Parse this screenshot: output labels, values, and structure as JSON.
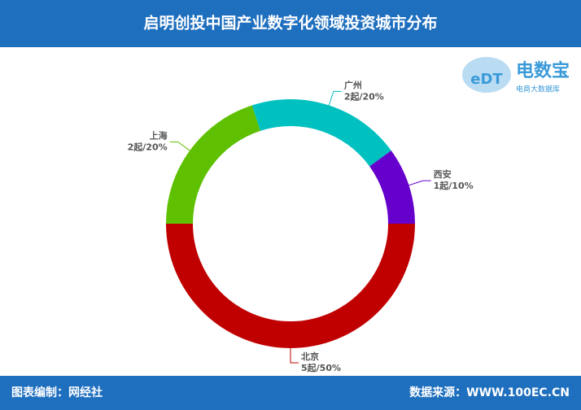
{
  "chart_data": {
    "type": "donut",
    "title": "启明创投中国产业数字化领域投资城市分布",
    "categories": [
      "北京",
      "上海",
      "广州",
      "西安"
    ],
    "values": [
      5,
      2,
      2,
      1
    ],
    "value_labels": [
      "5起/50%",
      "2起/20%",
      "2起/20%",
      "1起/10%"
    ],
    "colors": [
      "#c00000",
      "#5ec000",
      "#00c0c0",
      "#6600cc"
    ]
  },
  "logo": {
    "mark": "eDT",
    "name": "电数宝",
    "subtitle": "电商大数据库"
  },
  "footer": {
    "left": "图表编制：网经社",
    "right": "数据来源：WWW.100EC.CN"
  }
}
